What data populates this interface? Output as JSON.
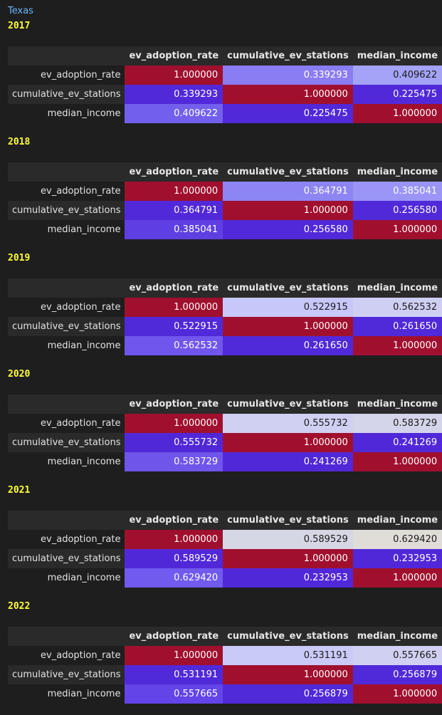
{
  "state": "Texas",
  "columns": [
    "ev_adoption_rate",
    "cumulative_ev_stations",
    "median_income"
  ],
  "rows": [
    "ev_adoption_rate",
    "cumulative_ev_stations",
    "median_income"
  ],
  "colors": {
    "diag": "#a0102e",
    "state_title": "#6cb6ff",
    "year_label": "#ffff3a",
    "background": "#1e1e1e",
    "header_band": "#2a2a2a"
  },
  "tables": [
    {
      "year": "2017",
      "values": [
        [
          "1.000000",
          "0.339293",
          "0.409622"
        ],
        [
          "0.339293",
          "1.000000",
          "0.225475"
        ],
        [
          "0.409622",
          "0.225475",
          "1.000000"
        ]
      ],
      "colors": [
        [
          "#a0102e",
          "#8a7cf2",
          "#a4a3f8"
        ],
        [
          "#5129d8",
          "#a0102e",
          "#5129d8"
        ],
        [
          "#7260ec",
          "#5129d8",
          "#a0102e"
        ]
      ]
    },
    {
      "year": "2018",
      "values": [
        [
          "1.000000",
          "0.364791",
          "0.385041"
        ],
        [
          "0.364791",
          "1.000000",
          "0.256580"
        ],
        [
          "0.385041",
          "0.256580",
          "1.000000"
        ]
      ],
      "colors": [
        [
          "#a0102e",
          "#8d85f4",
          "#9a95f6"
        ],
        [
          "#5229d8",
          "#a0102e",
          "#5229d8"
        ],
        [
          "#5f3fe2",
          "#5229d8",
          "#a0102e"
        ]
      ]
    },
    {
      "year": "2019",
      "values": [
        [
          "1.000000",
          "0.522915",
          "0.562532"
        ],
        [
          "0.522915",
          "1.000000",
          "0.261650"
        ],
        [
          "0.562532",
          "0.261650",
          "1.000000"
        ]
      ],
      "colors": [
        [
          "#a0102e",
          "#c8c7f9",
          "#cfcff4"
        ],
        [
          "#5029d8",
          "#a0102e",
          "#5029d8"
        ],
        [
          "#7056ed",
          "#5029d8",
          "#a0102e"
        ]
      ]
    },
    {
      "year": "2020",
      "values": [
        [
          "1.000000",
          "0.555732",
          "0.583729"
        ],
        [
          "0.555732",
          "1.000000",
          "0.241269"
        ],
        [
          "0.583729",
          "0.241269",
          "1.000000"
        ]
      ],
      "colors": [
        [
          "#a0102e",
          "#cfd0f2",
          "#d4d4ea"
        ],
        [
          "#5128d8",
          "#a0102e",
          "#5128d8"
        ],
        [
          "#6f55ea",
          "#5128d8",
          "#a0102e"
        ]
      ]
    },
    {
      "year": "2021",
      "values": [
        [
          "1.000000",
          "0.589529",
          "0.629420"
        ],
        [
          "0.589529",
          "1.000000",
          "0.232953"
        ],
        [
          "0.629420",
          "0.232953",
          "1.000000"
        ]
      ],
      "colors": [
        [
          "#a0102e",
          "#d6d7e4",
          "#e0dcd8"
        ],
        [
          "#5128d8",
          "#a0102e",
          "#5128d8"
        ],
        [
          "#715aee",
          "#5128d8",
          "#a0102e"
        ]
      ]
    },
    {
      "year": "2022",
      "values": [
        [
          "1.000000",
          "0.531191",
          "0.557665"
        ],
        [
          "0.531191",
          "1.000000",
          "0.256879"
        ],
        [
          "0.557665",
          "0.256879",
          "1.000000"
        ]
      ],
      "colors": [
        [
          "#a0102e",
          "#cacaf8",
          "#d0d0f2"
        ],
        [
          "#5029d8",
          "#a0102e",
          "#5029d8"
        ],
        [
          "#6244e8",
          "#5029d8",
          "#a0102e"
        ]
      ]
    }
  ]
}
